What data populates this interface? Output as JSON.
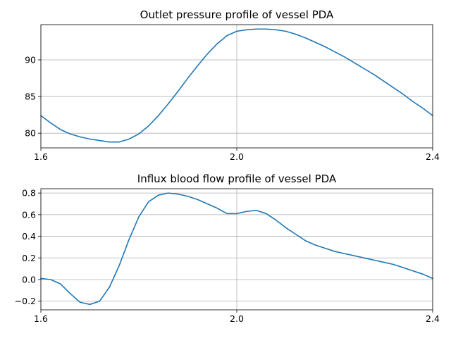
{
  "chart_data": [
    {
      "type": "line",
      "title": "Outlet pressure profile of vessel PDA",
      "xlabel": "",
      "ylabel": "",
      "xlim": [
        1.6,
        2.4
      ],
      "ylim": [
        78,
        94.8
      ],
      "xticks": [
        1.6,
        2.0,
        2.4
      ],
      "xtick_labels": [
        "1.6",
        "2.0",
        "2.4"
      ],
      "yticks": [
        80,
        85,
        90
      ],
      "ytick_labels": [
        "80",
        "85",
        "90"
      ],
      "grid": true,
      "series": [
        {
          "color": "#1f77b4",
          "x": [
            1.6,
            1.62,
            1.64,
            1.66,
            1.68,
            1.7,
            1.72,
            1.74,
            1.76,
            1.78,
            1.8,
            1.82,
            1.84,
            1.86,
            1.88,
            1.9,
            1.92,
            1.94,
            1.96,
            1.98,
            2.0,
            2.02,
            2.04,
            2.06,
            2.08,
            2.1,
            2.12,
            2.14,
            2.16,
            2.18,
            2.2,
            2.22,
            2.24,
            2.26,
            2.28,
            2.3,
            2.32,
            2.34,
            2.36,
            2.38,
            2.4
          ],
          "y": [
            82.4,
            81.4,
            80.5,
            79.9,
            79.5,
            79.2,
            79.0,
            78.8,
            78.8,
            79.2,
            79.9,
            81.0,
            82.4,
            84.0,
            85.7,
            87.5,
            89.2,
            90.8,
            92.2,
            93.3,
            93.9,
            94.1,
            94.2,
            94.2,
            94.1,
            93.9,
            93.5,
            93.0,
            92.4,
            91.8,
            91.1,
            90.4,
            89.6,
            88.8,
            88.0,
            87.1,
            86.2,
            85.3,
            84.3,
            83.4,
            82.4
          ]
        }
      ]
    },
    {
      "type": "line",
      "title": "Influx blood flow profile of vessel PDA",
      "xlabel": "",
      "ylabel": "",
      "xlim": [
        1.6,
        2.4
      ],
      "ylim": [
        -0.28,
        0.84
      ],
      "xticks": [
        1.6,
        2.0,
        2.4
      ],
      "xtick_labels": [
        "1.6",
        "2.0",
        "2.4"
      ],
      "yticks": [
        -0.2,
        0.0,
        0.2,
        0.4,
        0.6,
        0.8
      ],
      "ytick_labels": [
        "−0.2",
        "0.0",
        "0.2",
        "0.4",
        "0.6",
        "0.8"
      ],
      "grid": true,
      "series": [
        {
          "color": "#1f77b4",
          "x": [
            1.6,
            1.62,
            1.64,
            1.66,
            1.68,
            1.7,
            1.72,
            1.74,
            1.76,
            1.78,
            1.8,
            1.82,
            1.84,
            1.86,
            1.88,
            1.9,
            1.92,
            1.94,
            1.96,
            1.98,
            2.0,
            2.02,
            2.04,
            2.06,
            2.08,
            2.1,
            2.12,
            2.14,
            2.16,
            2.18,
            2.2,
            2.22,
            2.24,
            2.26,
            2.28,
            2.3,
            2.32,
            2.34,
            2.36,
            2.38,
            2.4
          ],
          "y": [
            0.01,
            0.0,
            -0.04,
            -0.13,
            -0.21,
            -0.23,
            -0.2,
            -0.07,
            0.13,
            0.37,
            0.58,
            0.72,
            0.78,
            0.8,
            0.79,
            0.77,
            0.74,
            0.7,
            0.66,
            0.61,
            0.61,
            0.63,
            0.64,
            0.61,
            0.55,
            0.48,
            0.42,
            0.36,
            0.32,
            0.29,
            0.26,
            0.24,
            0.22,
            0.2,
            0.18,
            0.16,
            0.14,
            0.11,
            0.08,
            0.05,
            0.01
          ]
        }
      ]
    }
  ]
}
